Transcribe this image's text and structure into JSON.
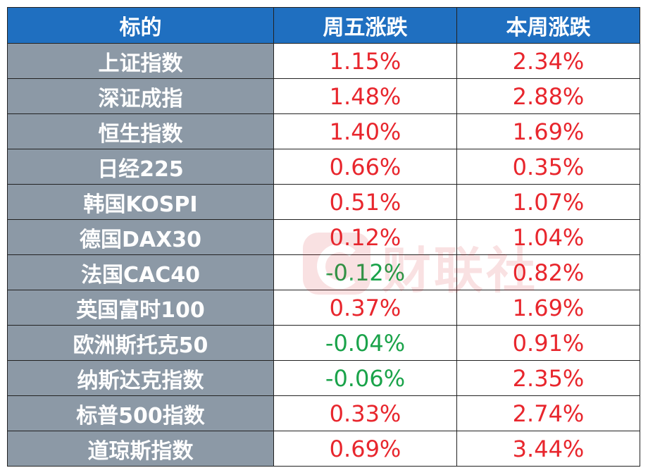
{
  "table": {
    "headers": [
      "标的",
      "周五涨跌",
      "本周涨跌"
    ],
    "rows": [
      {
        "name": "上证指数",
        "fri": "1.15%",
        "fri_color": "#e8262d",
        "week": "2.34%",
        "week_color": "#e8262d"
      },
      {
        "name": "深证成指",
        "fri": "1.48%",
        "fri_color": "#e8262d",
        "week": "2.88%",
        "week_color": "#e8262d"
      },
      {
        "name": "恒生指数",
        "fri": "1.40%",
        "fri_color": "#e8262d",
        "week": "1.69%",
        "week_color": "#e8262d"
      },
      {
        "name": "日经225",
        "fri": "0.66%",
        "fri_color": "#e8262d",
        "week": "0.35%",
        "week_color": "#e8262d"
      },
      {
        "name": "韩国KOSPI",
        "fri": "0.51%",
        "fri_color": "#e8262d",
        "week": "1.07%",
        "week_color": "#e8262d"
      },
      {
        "name": "德国DAX30",
        "fri": "0.12%",
        "fri_color": "#e8262d",
        "week": "1.04%",
        "week_color": "#e8262d"
      },
      {
        "name": "法国CAC40",
        "fri": "-0.12%",
        "fri_color": "#1aa34a",
        "week": "0.82%",
        "week_color": "#e8262d"
      },
      {
        "name": "英国富时100",
        "fri": "0.37%",
        "fri_color": "#e8262d",
        "week": "1.69%",
        "week_color": "#e8262d"
      },
      {
        "name": "欧洲斯托克50",
        "fri": "-0.04%",
        "fri_color": "#1aa34a",
        "week": "0.91%",
        "week_color": "#e8262d"
      },
      {
        "name": "纳斯达克指数",
        "fri": "-0.06%",
        "fri_color": "#1aa34a",
        "week": "2.35%",
        "week_color": "#e8262d"
      },
      {
        "name": "标普500指数",
        "fri": "0.33%",
        "fri_color": "#e8262d",
        "week": "2.74%",
        "week_color": "#e8262d"
      },
      {
        "name": "道琼斯指数",
        "fri": "0.69%",
        "fri_color": "#e8262d",
        "week": "3.44%",
        "week_color": "#e8262d"
      }
    ]
  },
  "watermark": {
    "text": "财联社",
    "icon": "cls-logo-icon"
  },
  "colors": {
    "header_bg": "#1f6fc0",
    "name_bg": "#8c99a6",
    "up": "#e8262d",
    "down": "#1aa34a"
  }
}
